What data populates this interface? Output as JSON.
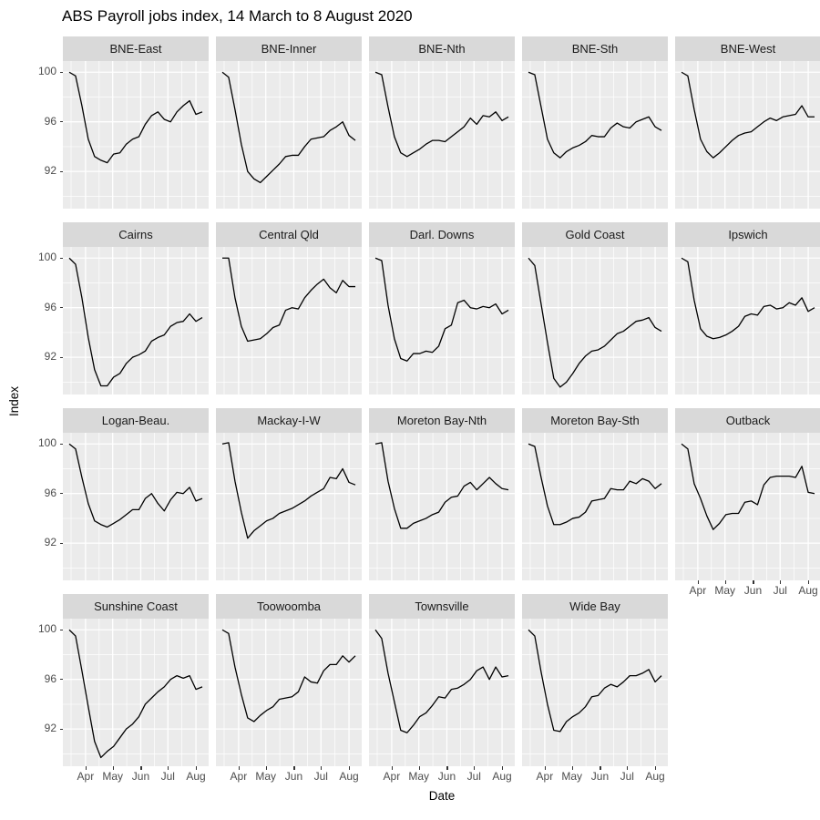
{
  "title": "ABS Payroll jobs index, 14 March to 8 August 2020",
  "x_axis_label": "Date",
  "y_axis_label": "Index",
  "chart_data": {
    "type": "line",
    "title": "ABS Payroll jobs index, 14 March to 8 August 2020",
    "xlabel": "Date",
    "ylabel": "Index",
    "x_period": "weekly, 14 March 2020 to 8 August 2020",
    "x_tick_labels": [
      "Apr",
      "May",
      "Jun",
      "Jul",
      "Aug"
    ],
    "y_tick_labels": [
      "100",
      "96",
      "92"
    ],
    "ylim": [
      89.0,
      100.9
    ],
    "grid": "on",
    "legend": "none",
    "colors": {
      "line": "#000000",
      "panel_bg": "#EBEBEB",
      "strip_bg": "#D9D9D9",
      "gridline": "#FFFFFF",
      "axis_text": "#4D4D4D",
      "tick_mark": "#333333"
    },
    "facets": [
      {
        "name": "BNE-East",
        "values": [
          100,
          99.7,
          97.3,
          94.6,
          93.2,
          92.9,
          92.7,
          93.4,
          93.5,
          94.2,
          94.6,
          94.8,
          95.8,
          96.5,
          96.8,
          96.2,
          96.0,
          96.8,
          97.3,
          97.7,
          96.6,
          96.8
        ]
      },
      {
        "name": "BNE-Inner",
        "values": [
          100,
          99.6,
          97.0,
          94.2,
          92.0,
          91.4,
          91.1,
          91.6,
          92.1,
          92.6,
          93.2,
          93.3,
          93.3,
          94.0,
          94.6,
          94.7,
          94.8,
          95.3,
          95.6,
          96.0,
          94.9,
          94.5
        ]
      },
      {
        "name": "BNE-Nth",
        "values": [
          100,
          99.8,
          97.2,
          94.8,
          93.5,
          93.2,
          93.5,
          93.8,
          94.2,
          94.5,
          94.5,
          94.4,
          94.8,
          95.2,
          95.6,
          96.3,
          95.8,
          96.5,
          96.4,
          96.8,
          96.1,
          96.4
        ]
      },
      {
        "name": "BNE-Sth",
        "values": [
          100,
          99.8,
          97.2,
          94.6,
          93.5,
          93.1,
          93.6,
          93.9,
          94.1,
          94.4,
          94.9,
          94.8,
          94.8,
          95.5,
          95.9,
          95.6,
          95.5,
          96.0,
          96.2,
          96.4,
          95.6,
          95.3
        ]
      },
      {
        "name": "BNE-West",
        "values": [
          100,
          99.7,
          97.0,
          94.6,
          93.6,
          93.1,
          93.5,
          94.0,
          94.5,
          94.9,
          95.1,
          95.2,
          95.6,
          96.0,
          96.3,
          96.1,
          96.4,
          96.5,
          96.6,
          97.3,
          96.4,
          96.4
        ]
      },
      {
        "name": "Cairns",
        "values": [
          100,
          99.5,
          96.8,
          93.6,
          91.0,
          89.7,
          89.7,
          90.4,
          90.7,
          91.5,
          92.0,
          92.2,
          92.5,
          93.3,
          93.6,
          93.8,
          94.5,
          94.8,
          94.9,
          95.5,
          94.9,
          95.2
        ]
      },
      {
        "name": "Central Qld",
        "values": [
          100,
          100,
          96.8,
          94.5,
          93.3,
          93.4,
          93.5,
          93.9,
          94.4,
          94.6,
          95.8,
          96.0,
          95.9,
          96.8,
          97.4,
          97.9,
          98.3,
          97.6,
          97.2,
          98.2,
          97.7,
          97.7
        ]
      },
      {
        "name": "Darl. Downs",
        "values": [
          100,
          99.8,
          96.2,
          93.5,
          91.9,
          91.7,
          92.3,
          92.3,
          92.5,
          92.4,
          92.9,
          94.3,
          94.6,
          96.4,
          96.6,
          96.0,
          95.9,
          96.1,
          96.0,
          96.3,
          95.5,
          95.8
        ]
      },
      {
        "name": "Gold Coast",
        "values": [
          100,
          99.4,
          96.3,
          93.2,
          90.3,
          89.6,
          90.0,
          90.7,
          91.5,
          92.1,
          92.5,
          92.6,
          92.9,
          93.4,
          93.9,
          94.1,
          94.5,
          94.9,
          95.0,
          95.2,
          94.4,
          94.1
        ]
      },
      {
        "name": "Ipswich",
        "values": [
          100,
          99.7,
          96.6,
          94.3,
          93.7,
          93.5,
          93.6,
          93.8,
          94.1,
          94.5,
          95.3,
          95.5,
          95.4,
          96.1,
          96.2,
          95.9,
          96.0,
          96.4,
          96.2,
          96.8,
          95.7,
          96.0
        ]
      },
      {
        "name": "Logan-Beau.",
        "values": [
          100,
          99.6,
          97.3,
          95.2,
          93.8,
          93.5,
          93.3,
          93.6,
          93.9,
          94.3,
          94.7,
          94.7,
          95.6,
          96.0,
          95.2,
          94.6,
          95.5,
          96.1,
          96.0,
          96.5,
          95.4,
          95.6
        ]
      },
      {
        "name": "Mackay-I-W",
        "values": [
          100,
          100.1,
          97.0,
          94.5,
          92.4,
          93.0,
          93.4,
          93.8,
          94.0,
          94.4,
          94.6,
          94.8,
          95.1,
          95.4,
          95.8,
          96.1,
          96.4,
          97.3,
          97.2,
          98.0,
          96.9,
          96.7
        ]
      },
      {
        "name": "Moreton Bay-Nth",
        "values": [
          100,
          100.1,
          97.0,
          94.8,
          93.2,
          93.2,
          93.6,
          93.8,
          94.0,
          94.3,
          94.5,
          95.3,
          95.7,
          95.8,
          96.6,
          96.9,
          96.3,
          96.8,
          97.3,
          96.8,
          96.4,
          96.3
        ]
      },
      {
        "name": "Moreton Bay-Sth",
        "values": [
          100,
          99.8,
          97.3,
          95.0,
          93.5,
          93.5,
          93.7,
          94.0,
          94.1,
          94.5,
          95.4,
          95.5,
          95.6,
          96.4,
          96.3,
          96.3,
          97.0,
          96.8,
          97.2,
          97.0,
          96.4,
          96.8
        ]
      },
      {
        "name": "Outback",
        "values": [
          100,
          99.6,
          96.8,
          95.6,
          94.2,
          93.1,
          93.6,
          94.3,
          94.4,
          94.4,
          95.3,
          95.4,
          95.1,
          96.7,
          97.3,
          97.4,
          97.4,
          97.4,
          97.3,
          98.2,
          96.1,
          96.0
        ]
      },
      {
        "name": "Sunshine Coast",
        "values": [
          100,
          99.5,
          96.7,
          93.8,
          91.0,
          89.7,
          90.2,
          90.6,
          91.3,
          92.0,
          92.4,
          93.0,
          94.0,
          94.5,
          95.0,
          95.4,
          96.0,
          96.3,
          96.1,
          96.3,
          95.2,
          95.4
        ]
      },
      {
        "name": "Toowoomba",
        "values": [
          100,
          99.7,
          97.0,
          94.8,
          92.9,
          92.6,
          93.1,
          93.5,
          93.8,
          94.4,
          94.5,
          94.6,
          95.0,
          96.2,
          95.8,
          95.7,
          96.7,
          97.2,
          97.2,
          97.9,
          97.4,
          97.9
        ]
      },
      {
        "name": "Townsville",
        "values": [
          100,
          99.3,
          96.5,
          94.2,
          91.9,
          91.7,
          92.3,
          93.0,
          93.3,
          93.9,
          94.6,
          94.5,
          95.2,
          95.3,
          95.6,
          96.0,
          96.7,
          97.0,
          96.0,
          97.0,
          96.2,
          96.3
        ]
      },
      {
        "name": "Wide Bay",
        "values": [
          100,
          99.5,
          96.6,
          94.0,
          91.9,
          91.8,
          92.6,
          93.0,
          93.3,
          93.8,
          94.6,
          94.7,
          95.3,
          95.6,
          95.4,
          95.8,
          96.3,
          96.3,
          96.5,
          96.8,
          95.8,
          96.3
        ]
      }
    ]
  }
}
